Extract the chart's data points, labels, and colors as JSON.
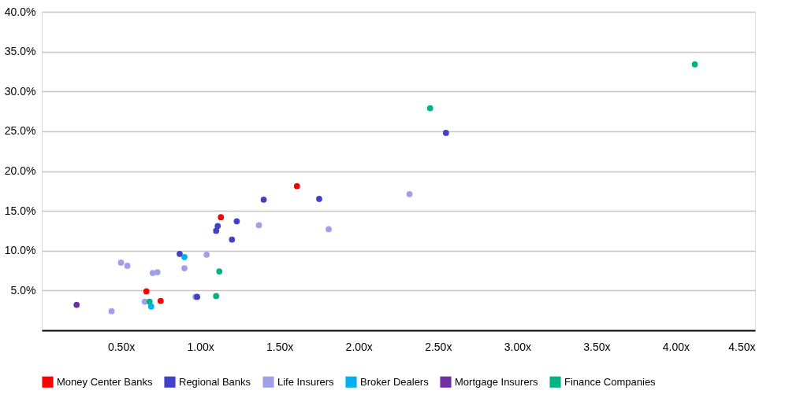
{
  "chart_data": {
    "type": "scatter",
    "series": [
      {
        "name": "Money Center Banks",
        "color": "#ff0000",
        "x": [
          0.66,
          0.75,
          1.13,
          1.61
        ],
        "values": [
          4.9,
          3.7,
          14.2,
          18.1
        ]
      },
      {
        "name": "Regional Banks",
        "color": "#4040c8",
        "x": [
          0.87,
          0.98,
          1.1,
          1.11,
          1.23,
          1.2,
          1.4,
          1.75,
          2.55
        ],
        "values": [
          9.6,
          4.2,
          12.5,
          13.1,
          13.7,
          11.4,
          16.4,
          16.5,
          24.8
        ]
      },
      {
        "name": "Life Insurers",
        "color": "#a0a0e8",
        "x": [
          0.44,
          0.5,
          0.54,
          0.65,
          0.7,
          0.73,
          0.9,
          0.97,
          1.04,
          1.37,
          1.81,
          2.32
        ],
        "values": [
          2.4,
          8.5,
          8.1,
          3.6,
          7.2,
          7.3,
          7.8,
          4.2,
          9.5,
          13.2,
          12.7,
          17.1
        ]
      },
      {
        "name": "Broker Dealers",
        "color": "#00b0f0",
        "x": [
          0.9,
          0.69
        ],
        "values": [
          9.2,
          3.0
        ]
      },
      {
        "name": "Mortgage Insurers",
        "color": "#7030a0",
        "x": [
          0.22
        ],
        "values": [
          3.2
        ]
      },
      {
        "name": "Finance Companies",
        "color": "#00b386",
        "x": [
          0.68,
          1.12,
          1.1,
          2.45,
          4.12
        ],
        "values": [
          3.6,
          7.4,
          4.3,
          27.9,
          33.4
        ]
      }
    ],
    "xlim": [
      0,
      4.5
    ],
    "xticks": [
      {
        "value": 0.5,
        "label": "0.50x"
      },
      {
        "value": 1.0,
        "label": "1.00x"
      },
      {
        "value": 1.5,
        "label": "1.50x"
      },
      {
        "value": 2.0,
        "label": "2.00x"
      },
      {
        "value": 2.5,
        "label": "2.50x"
      },
      {
        "value": 3.0,
        "label": "3.00x"
      },
      {
        "value": 3.5,
        "label": "3.50x"
      },
      {
        "value": 4.0,
        "label": "4.00x"
      },
      {
        "value": 4.5,
        "label": "4.50x"
      }
    ],
    "ylim": [
      0,
      40
    ],
    "yticks": [
      {
        "value": 5,
        "label": "5.0%"
      },
      {
        "value": 10,
        "label": "10.0%"
      },
      {
        "value": 15,
        "label": "15.0%"
      },
      {
        "value": 20,
        "label": "20.0%"
      },
      {
        "value": 25,
        "label": "25.0%"
      },
      {
        "value": 30,
        "label": "30.0%"
      },
      {
        "value": 35,
        "label": "35.0%"
      },
      {
        "value": 40,
        "label": "40.0%"
      }
    ],
    "grid": "y",
    "legend": "bottom",
    "marker": "circle"
  }
}
